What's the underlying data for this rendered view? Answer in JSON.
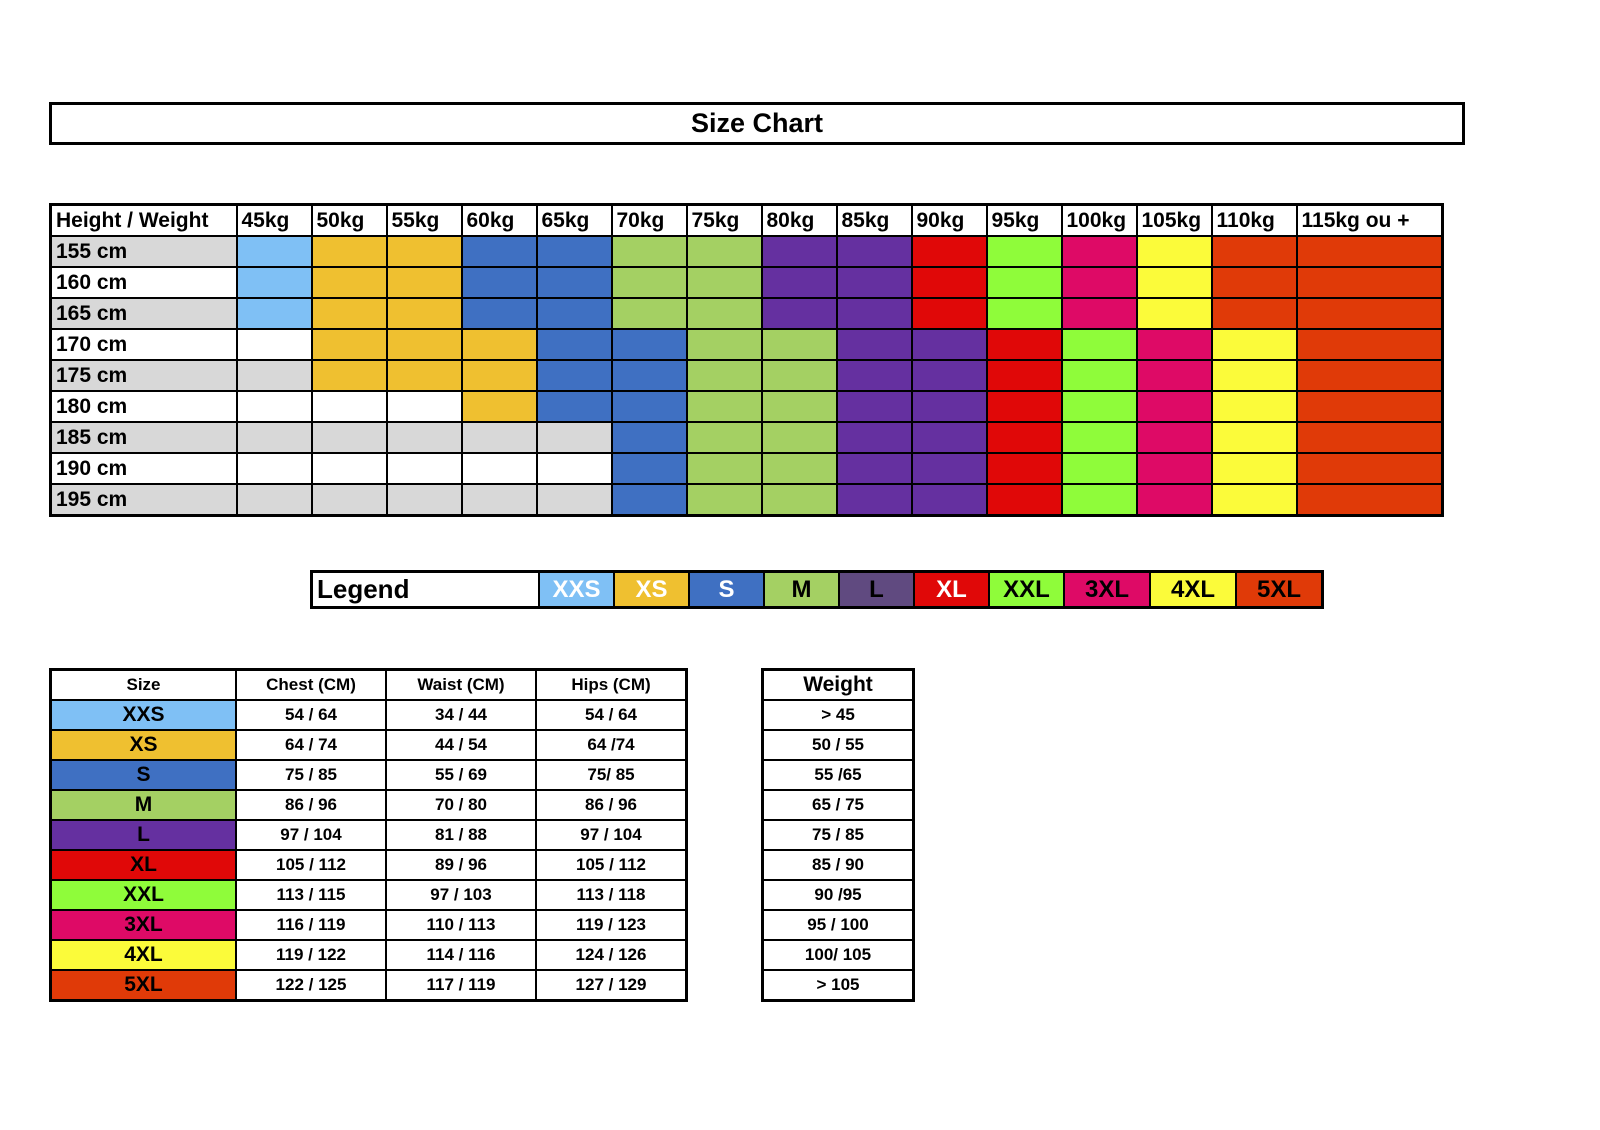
{
  "title": "Size Chart",
  "colors": {
    "XXS": "#7fc0f5",
    "XS": "#efc030",
    "S": "#3f70c2",
    "M": "#a4d063",
    "L": "#6530a0",
    "XL": "#e00808",
    "XXL": "#8ffc3a",
    "3XL": "#de0a66",
    "4XL": "#fbfb3a",
    "5XL": "#e03a08",
    "grey": "#d8d8d8",
    "white": "#ffffff",
    "legend_L": "#604a80"
  },
  "grid": {
    "corner_label": "Height / Weight",
    "weights": [
      "45kg",
      "50kg",
      "55kg",
      "60kg",
      "65kg",
      "70kg",
      "75kg",
      "80kg",
      "85kg",
      "90kg",
      "95kg",
      "100kg",
      "105kg",
      "110kg",
      "115kg ou +"
    ],
    "rows": [
      {
        "height": "155 cm",
        "cells": [
          "XXS",
          "XS",
          "XS",
          "S",
          "S",
          "M",
          "M",
          "L",
          "L",
          "XL",
          "XXL",
          "3XL",
          "4XL",
          "5XL",
          "5XL"
        ]
      },
      {
        "height": "160 cm",
        "cells": [
          "XXS",
          "XS",
          "XS",
          "S",
          "S",
          "M",
          "M",
          "L",
          "L",
          "XL",
          "XXL",
          "3XL",
          "4XL",
          "5XL",
          "5XL"
        ]
      },
      {
        "height": "165 cm",
        "cells": [
          "XXS",
          "XS",
          "XS",
          "S",
          "S",
          "M",
          "M",
          "L",
          "L",
          "XL",
          "XXL",
          "3XL",
          "4XL",
          "5XL",
          "5XL"
        ]
      },
      {
        "height": "170 cm",
        "cells": [
          "",
          "XS",
          "XS",
          "XS",
          "S",
          "S",
          "M",
          "M",
          "L",
          "L",
          "XL",
          "XXL",
          "3XL",
          "4XL",
          "5XL"
        ]
      },
      {
        "height": "175 cm",
        "cells": [
          "",
          "XS",
          "XS",
          "XS",
          "S",
          "S",
          "M",
          "M",
          "L",
          "L",
          "XL",
          "XXL",
          "3XL",
          "4XL",
          "5XL"
        ]
      },
      {
        "height": "180 cm",
        "cells": [
          "",
          "",
          "",
          "XS",
          "S",
          "S",
          "M",
          "M",
          "L",
          "L",
          "XL",
          "XXL",
          "3XL",
          "4XL",
          "5XL"
        ]
      },
      {
        "height": "185 cm",
        "cells": [
          "",
          "",
          "",
          "",
          "",
          "S",
          "M",
          "M",
          "L",
          "L",
          "XL",
          "XXL",
          "3XL",
          "4XL",
          "5XL"
        ]
      },
      {
        "height": "190 cm",
        "cells": [
          "",
          "",
          "",
          "",
          "",
          "S",
          "M",
          "M",
          "L",
          "L",
          "XL",
          "XXL",
          "3XL",
          "4XL",
          "5XL"
        ]
      },
      {
        "height": "195 cm",
        "cells": [
          "",
          "",
          "",
          "",
          "",
          "S",
          "M",
          "M",
          "L",
          "L",
          "XL",
          "XXL",
          "3XL",
          "4XL",
          "5XL"
        ]
      }
    ]
  },
  "legend": {
    "label": "Legend",
    "items": [
      "XXS",
      "XS",
      "S",
      "M",
      "L",
      "XL",
      "XXL",
      "3XL",
      "4XL",
      "5XL"
    ]
  },
  "size_table": {
    "headers": [
      "Size",
      "Chest (CM)",
      "Waist (CM)",
      "Hips (CM)"
    ],
    "rows": [
      [
        "XXS",
        "54 / 64",
        "34 / 44",
        "54 / 64"
      ],
      [
        "XS",
        "64 / 74",
        "44 / 54",
        "64 /74"
      ],
      [
        "S",
        "75 / 85",
        "55 / 69",
        "75/ 85"
      ],
      [
        "M",
        "86 / 96",
        "70 / 80",
        "86 / 96"
      ],
      [
        "L",
        "97 / 104",
        "81 / 88",
        "97 / 104"
      ],
      [
        "XL",
        "105 / 112",
        "89 / 96",
        "105 / 112"
      ],
      [
        "XXL",
        "113 / 115",
        "97 / 103",
        "113 / 118"
      ],
      [
        "3XL",
        "116 / 119",
        "110 / 113",
        "119 / 123"
      ],
      [
        "4XL",
        "119 / 122",
        "114 / 116",
        "124 / 126"
      ],
      [
        "5XL",
        "122 / 125",
        "117 / 119",
        "127 / 129"
      ]
    ]
  },
  "weight_table": {
    "header": "Weight",
    "rows": [
      "> 45",
      "50 / 55",
      "55 /65",
      "65 / 75",
      "75 / 85",
      "85 / 90",
      "90 /95",
      "95 / 100",
      "100/ 105",
      "> 105"
    ]
  }
}
